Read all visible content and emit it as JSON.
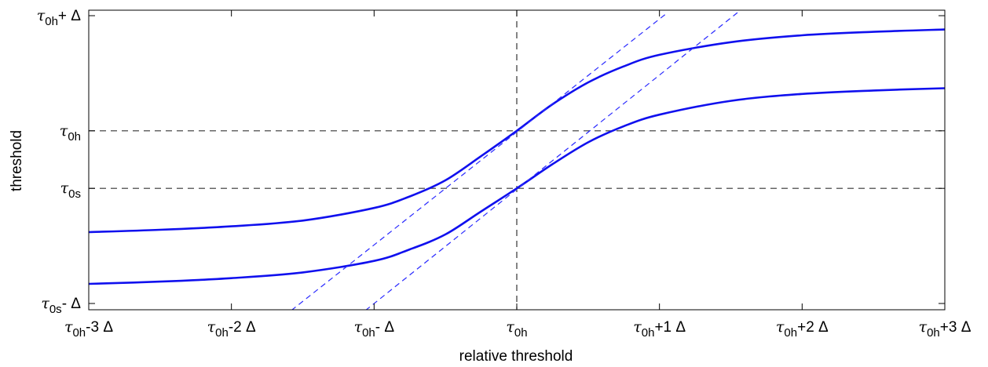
{
  "chart_data": {
    "type": "line",
    "title": "",
    "xlabel": "relative threshold",
    "ylabel": "threshold",
    "xlim": [
      -3,
      3
    ],
    "ylim": [
      -1.5,
      1.0
    ],
    "grid": false,
    "legend": "none",
    "x_ticks": [
      {
        "value": -3,
        "sym": "τ",
        "sub": "0h",
        "rest": "-3 Δ"
      },
      {
        "value": -2,
        "sym": "τ",
        "sub": "0h",
        "rest": "-2 Δ"
      },
      {
        "value": -1,
        "sym": "τ",
        "sub": "0h",
        "rest": "- Δ"
      },
      {
        "value": 0,
        "sym": "τ",
        "sub": "0h",
        "rest": ""
      },
      {
        "value": 1,
        "sym": "τ",
        "sub": "0h",
        "rest": "+1 Δ"
      },
      {
        "value": 2,
        "sym": "τ",
        "sub": "0h",
        "rest": "+2 Δ"
      },
      {
        "value": 3,
        "sym": "τ",
        "sub": "0h",
        "rest": "+3 Δ"
      }
    ],
    "y_ticks": [
      {
        "value": 1.0,
        "sym": "τ",
        "sub": "0h",
        "rest": "+ Δ"
      },
      {
        "value": 0.0,
        "sym": "τ",
        "sub": "0h",
        "rest": ""
      },
      {
        "value": -0.5,
        "sym": "τ",
        "sub": "0s",
        "rest": ""
      },
      {
        "value": -1.5,
        "sym": "τ",
        "sub": "0s",
        "rest": "- Δ"
      }
    ],
    "reference_lines": {
      "horizontal": [
        0.0,
        -0.5
      ],
      "vertical": [
        0.0
      ]
    },
    "series": [
      {
        "x": [
          -3,
          -2.5,
          -2,
          -1.5,
          -1,
          -0.75,
          -0.5,
          -0.25,
          0,
          0.25,
          0.5,
          0.75,
          1,
          1.5,
          2,
          2.5,
          3
        ],
        "y": [
          -0.88,
          -0.86,
          -0.83,
          -0.78,
          -0.67,
          -0.57,
          -0.43,
          -0.22,
          0.0,
          0.23,
          0.42,
          0.56,
          0.66,
          0.77,
          0.83,
          0.86,
          0.88
        ],
        "color": "#1010ee",
        "style": "solid"
      },
      {
        "x": [
          -3,
          -2.5,
          -2,
          -1.5,
          -1,
          -0.75,
          -0.5,
          -0.25,
          0,
          0.25,
          0.5,
          0.75,
          1,
          1.5,
          2,
          2.5,
          3
        ],
        "y": [
          -1.33,
          -1.31,
          -1.28,
          -1.23,
          -1.13,
          -1.03,
          -0.9,
          -0.7,
          -0.5,
          -0.29,
          -0.1,
          0.04,
          0.14,
          0.26,
          0.32,
          0.35,
          0.37
        ],
        "color": "#1010ee",
        "style": "solid"
      },
      {
        "x": [
          -1.58,
          1.06
        ],
        "y": [
          -1.56,
          1.03
        ],
        "color": "#2a2aff",
        "style": "dashed"
      },
      {
        "x": [
          -1.06,
          1.55
        ],
        "y": [
          -1.56,
          1.03
        ],
        "color": "#2a2aff",
        "style": "dashed"
      }
    ]
  }
}
